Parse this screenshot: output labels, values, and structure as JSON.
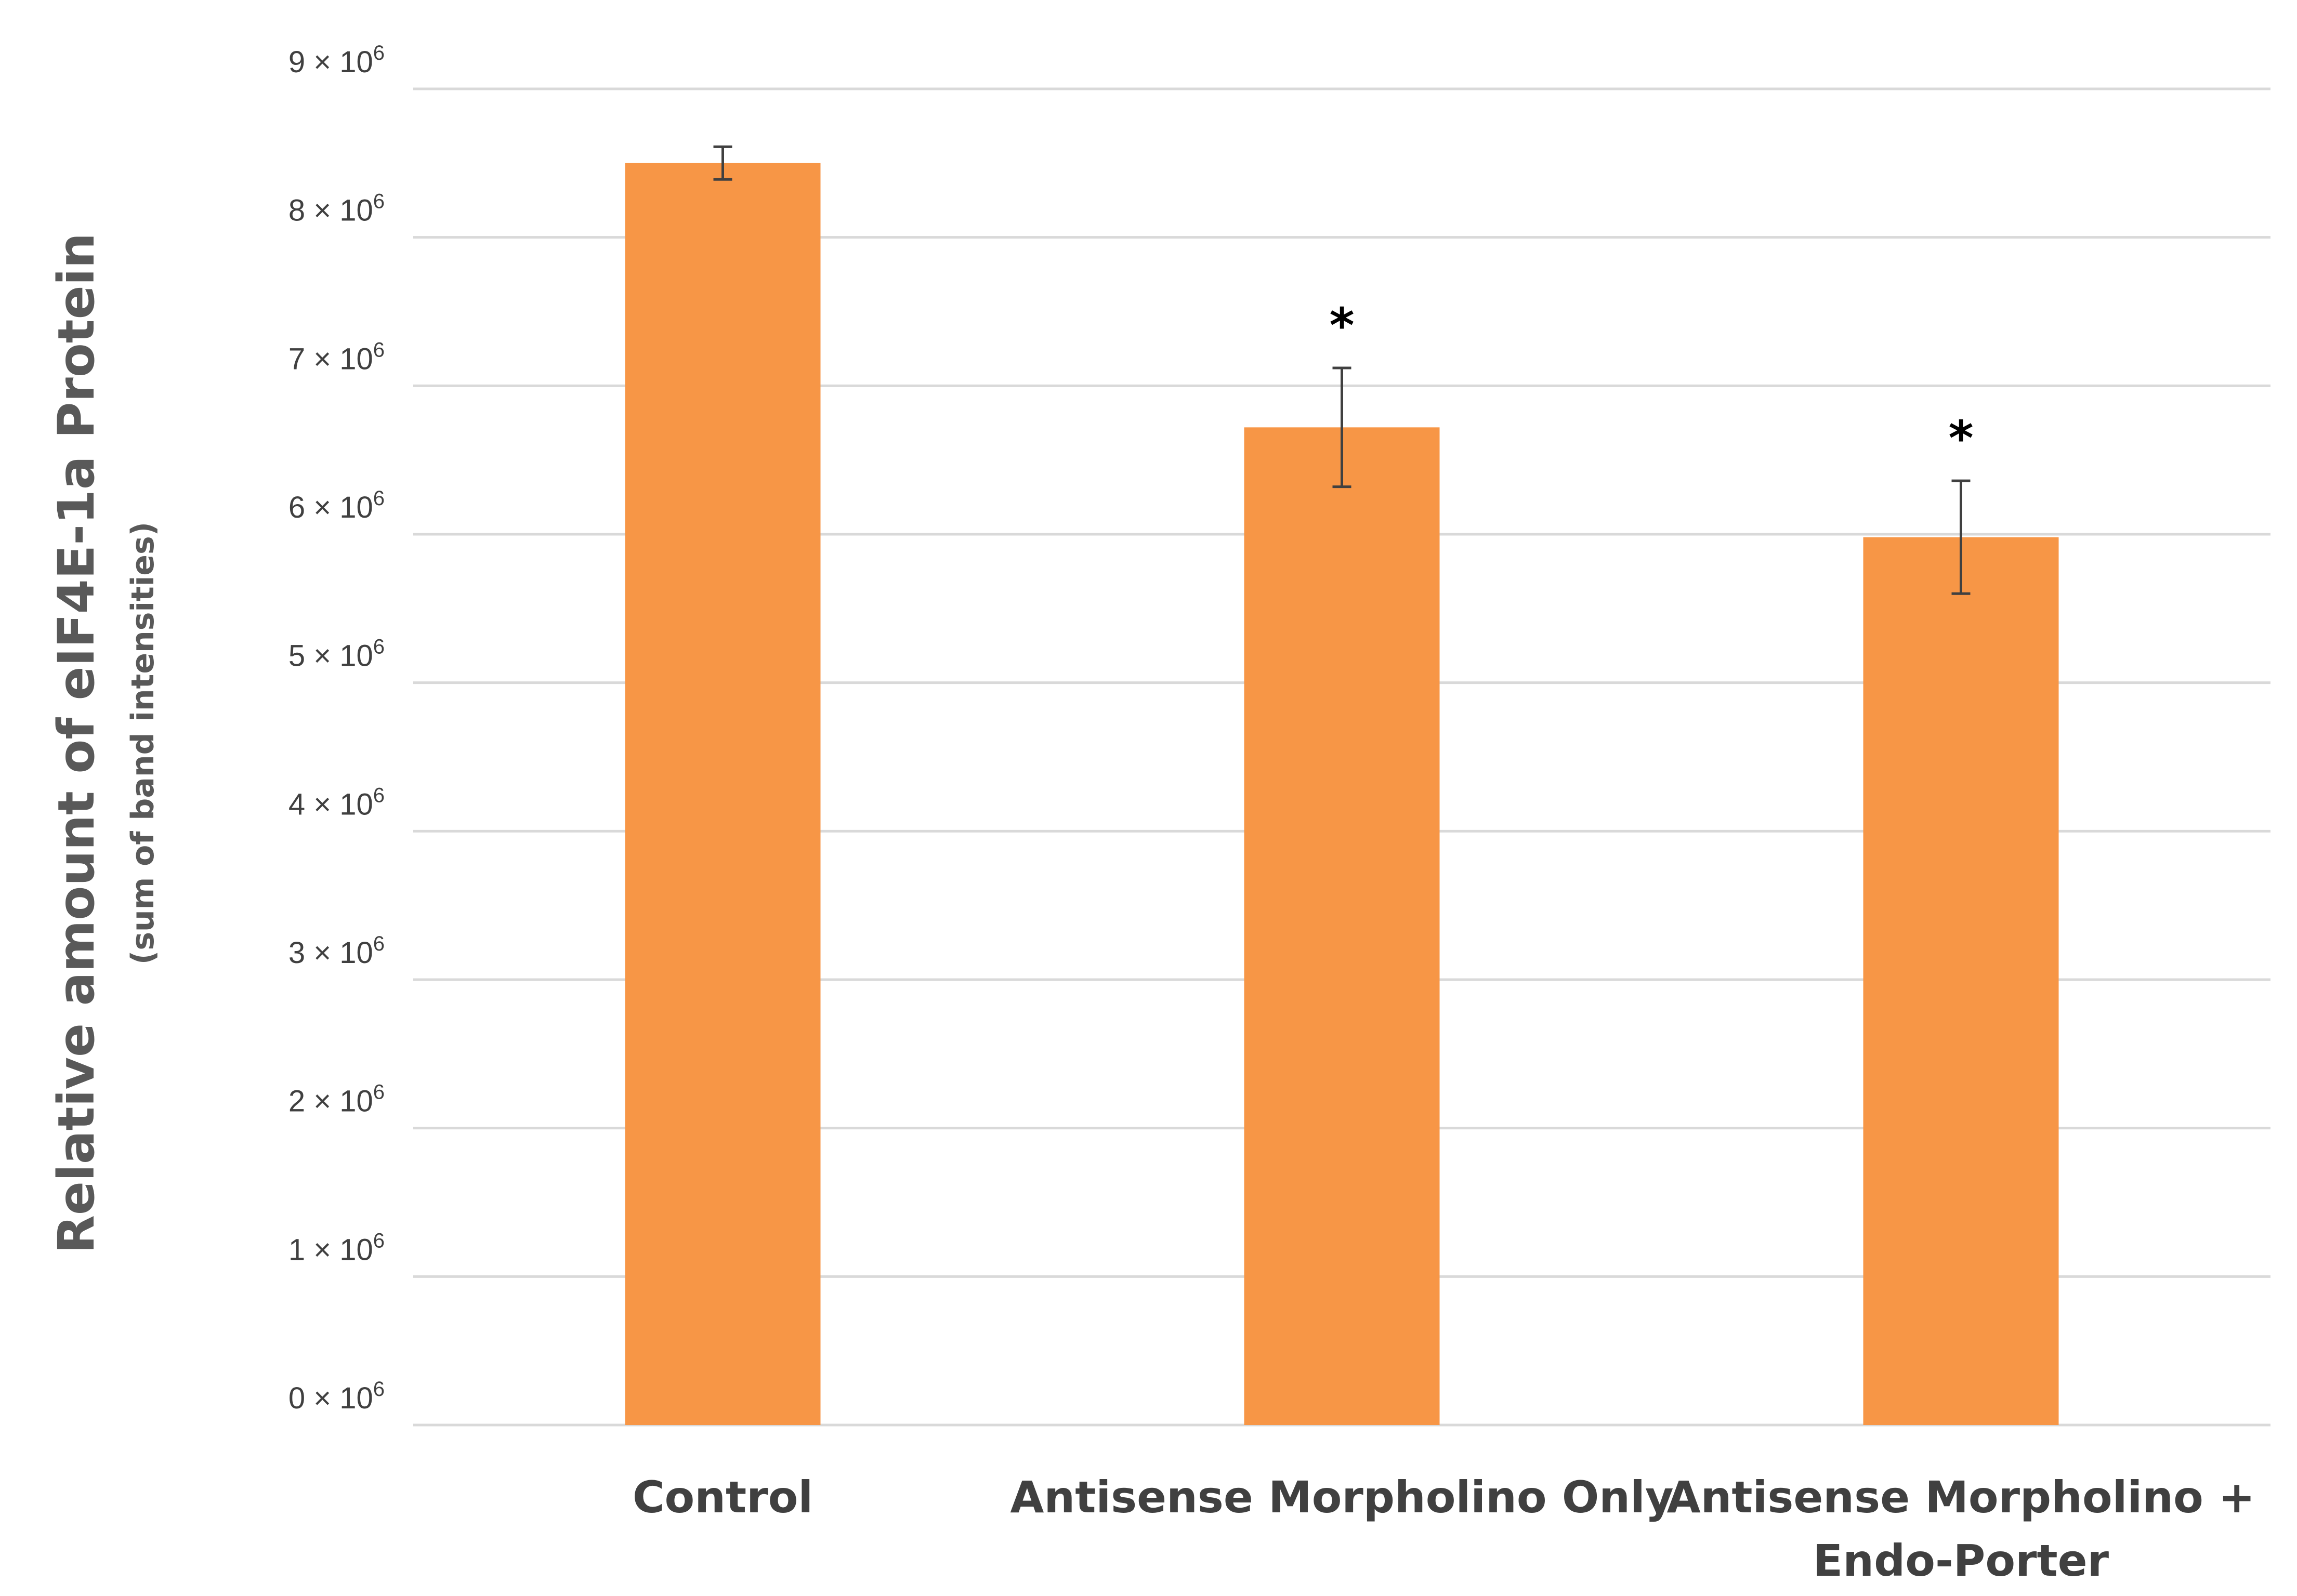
{
  "chart_data": {
    "type": "bar",
    "title": "",
    "xlabel": "",
    "ylabel": "Relative amount of eIF4E-1a Protein",
    "ylabel_sub": "(sum of band intensities)",
    "categories": [
      "Control",
      "Antisense Morpholino Only",
      "Antisense Morpholino + Endo-Porter"
    ],
    "category_lines": [
      [
        "Control"
      ],
      [
        "Antisense Morpholino Only"
      ],
      [
        "Antisense Morpholino +",
        "Endo-Porter"
      ]
    ],
    "values": [
      8500000,
      6720000,
      5980000
    ],
    "errors": [
      110000,
      400000,
      380000
    ],
    "significance": [
      "",
      "*",
      "*"
    ],
    "ylim": [
      0,
      9000000
    ],
    "yticks": [
      0,
      1000000,
      2000000,
      3000000,
      4000000,
      5000000,
      6000000,
      7000000,
      8000000,
      9000000
    ],
    "ytick_mantissas": [
      "0",
      "1",
      "2",
      "3",
      "4",
      "5",
      "6",
      "7",
      "8",
      "9"
    ],
    "ytick_times": "×",
    "ytick_base": "10",
    "ytick_exponent": "6",
    "grid": true,
    "bar_color": "#F79646",
    "grid_color": "#D9D9D9",
    "error_color": "#404040"
  }
}
